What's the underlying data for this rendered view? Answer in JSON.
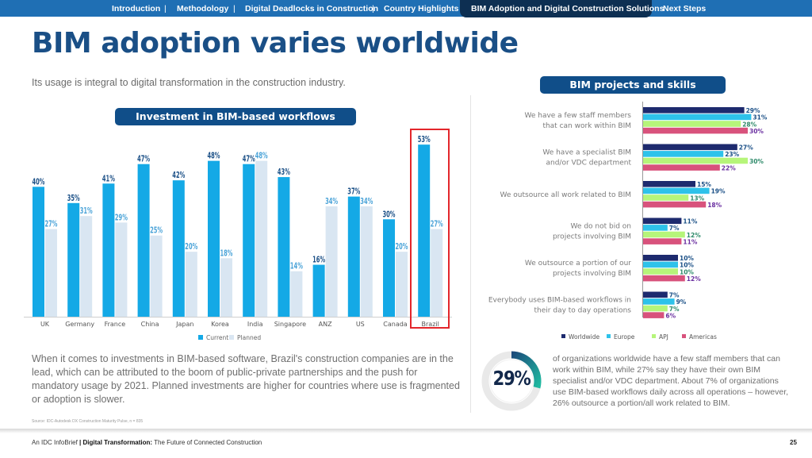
{
  "nav": {
    "items": [
      {
        "label": "Introduction",
        "active": false
      },
      {
        "label": "Methodology",
        "active": false
      },
      {
        "label": "Digital Deadlocks in Construction",
        "active": false
      },
      {
        "label": "Country Highlights",
        "active": false
      },
      {
        "label": "BIM Adoption and Digital Construction Solutions",
        "active": true
      },
      {
        "label": "Next Steps",
        "active": false
      }
    ],
    "separator": "|"
  },
  "page": {
    "title": "BIM adoption varies worldwide",
    "subtitle": "Its usage is integral to digital transformation in the construction industry.",
    "body_text": "When it comes to investments in BIM-based software, Brazil's construction companies are in the lead, which can be attributed to the boom of public-private partnerships and the push for mandatory usage by 2021. Planned investments are higher for countries where use is fragmented or adoption is slower.",
    "source": "Source: IDC-Autodesk DX Construction Maturity Pulse, n = 835",
    "footer_prefix": "An IDC InfoBrief",
    "footer_bold": "Digital Transformation:",
    "footer_rest": "The Future of Connected Construction",
    "page_number": "25"
  },
  "colors": {
    "current": "#14a9e6",
    "planned": "#d9e6f2",
    "worldwide": "#1d2a6e",
    "europe": "#2ec2ea",
    "apj": "#b6f57a",
    "americas": "#d8527c",
    "highlight": "#e3262b",
    "title": "#1a4f86"
  },
  "donut": {
    "value_label": "29%",
    "fraction": 0.29,
    "text": "of organizations worldwide have a few staff members that can work within BIM, while 27% say they have their own BIM specialist and/or VDC department. About 7% of organizations use BIM-based workflows daily across all operations – however, 26% outsource a portion/all work related to BIM."
  },
  "chart_data": [
    {
      "type": "bar",
      "title": "Investment in BIM-based workflows",
      "categories": [
        "UK",
        "Germany",
        "France",
        "China",
        "Japan",
        "Korea",
        "India",
        "Singapore",
        "ANZ",
        "US",
        "Canada",
        "Brazil"
      ],
      "series": [
        {
          "name": "Current",
          "values": [
            40,
            35,
            41,
            47,
            42,
            48,
            47,
            43,
            16,
            37,
            30,
            53
          ]
        },
        {
          "name": "Planned",
          "values": [
            27,
            31,
            29,
            25,
            20,
            18,
            48,
            14,
            34,
            34,
            20,
            27
          ]
        }
      ],
      "unit": "%",
      "highlighted_category": "Brazil",
      "legend": "bottom",
      "ylim": [
        0,
        55
      ],
      "grid": false
    },
    {
      "type": "bar",
      "orientation": "horizontal",
      "title": "BIM projects and skills",
      "categories": [
        "We have a few staff members that can work within BIM",
        "We have a specialist BIM and/or VDC department",
        "We outsource all work related to BIM",
        "We do not bid on projects involving BIM",
        "We outsource a portion of our projects involving BIM",
        "Everybody uses BIM-based workflows in their day to day operations"
      ],
      "series": [
        {
          "name": "Worldwide",
          "values": [
            29,
            27,
            15,
            11,
            10,
            7
          ]
        },
        {
          "name": "Europe",
          "values": [
            31,
            23,
            19,
            7,
            10,
            9
          ]
        },
        {
          "name": "APJ",
          "values": [
            28,
            30,
            13,
            12,
            10,
            7
          ]
        },
        {
          "name": "Americas",
          "values": [
            30,
            22,
            18,
            11,
            12,
            6
          ]
        }
      ],
      "unit": "%",
      "legend": "bottom",
      "xlim": [
        0,
        35
      ],
      "grid": false
    }
  ]
}
